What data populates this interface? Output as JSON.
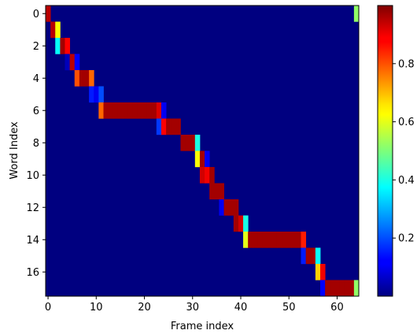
{
  "chart_data": {
    "type": "heatmap",
    "title": "",
    "xlabel": "Frame index",
    "ylabel": "Word Index",
    "n_rows": 18,
    "n_cols": 65,
    "background_value": 0.0,
    "xlim": [
      -0.5,
      64.5
    ],
    "ylim": [
      17.5,
      -0.5
    ],
    "x_ticks": [
      0,
      10,
      20,
      30,
      40,
      50,
      60
    ],
    "y_ticks": [
      0,
      2,
      4,
      6,
      8,
      10,
      12,
      14,
      16
    ],
    "colormap": "jet",
    "colorbar": {
      "range": [
        0.0,
        1.0
      ],
      "ticks": [
        0.2,
        0.4,
        0.6,
        0.8
      ],
      "tick_labels": [
        "0.2",
        "0.4",
        "0.6",
        "0.8"
      ]
    },
    "grid": false,
    "cells": [
      {
        "row": 0,
        "start": 0,
        "values": [
          0.95
        ]
      },
      {
        "row": 0,
        "start": 64,
        "values": [
          0.52
        ]
      },
      {
        "row": 1,
        "start": 1,
        "values": [
          0.95,
          0.62
        ]
      },
      {
        "row": 2,
        "start": 2,
        "values": [
          0.38,
          0.97,
          0.88
        ]
      },
      {
        "row": 3,
        "start": 4,
        "values": [
          0.05,
          0.95,
          0.12
        ]
      },
      {
        "row": 4,
        "start": 6,
        "values": [
          0.8,
          0.97,
          0.97,
          0.78
        ]
      },
      {
        "row": 5,
        "start": 9,
        "values": [
          0.15,
          0.1,
          0.2
        ]
      },
      {
        "row": 6,
        "start": 11,
        "values": [
          0.78,
          0.97,
          0.97,
          0.97,
          0.97,
          0.97,
          0.97,
          0.97,
          0.97,
          0.97,
          0.97,
          0.97,
          0.92,
          0.1
        ]
      },
      {
        "row": 7,
        "start": 23,
        "values": [
          0.18,
          0.88,
          0.97,
          0.97,
          0.97
        ]
      },
      {
        "row": 8,
        "start": 28,
        "values": [
          0.97,
          0.97,
          0.97,
          0.4
        ]
      },
      {
        "row": 9,
        "start": 31,
        "values": [
          0.62,
          0.97,
          0.1
        ]
      },
      {
        "row": 10,
        "start": 32,
        "values": [
          0.93,
          0.9,
          0.97
        ]
      },
      {
        "row": 11,
        "start": 34,
        "values": [
          0.97,
          0.97,
          0.97
        ]
      },
      {
        "row": 12,
        "start": 36,
        "values": [
          0.1,
          0.97,
          0.97,
          0.97
        ]
      },
      {
        "row": 13,
        "start": 39,
        "values": [
          0.97,
          0.93,
          0.4
        ]
      },
      {
        "row": 14,
        "start": 41,
        "values": [
          0.6,
          0.97,
          0.97,
          0.97,
          0.97,
          0.97,
          0.97,
          0.97,
          0.97,
          0.97,
          0.97,
          0.97,
          0.85
        ]
      },
      {
        "row": 15,
        "start": 53,
        "values": [
          0.15,
          0.97,
          0.97,
          0.38
        ]
      },
      {
        "row": 16,
        "start": 56,
        "values": [
          0.68,
          0.9
        ]
      },
      {
        "row": 17,
        "start": 57,
        "values": [
          0.12,
          0.97,
          0.97,
          0.97,
          0.97,
          0.97,
          0.97,
          0.52
        ]
      }
    ]
  }
}
